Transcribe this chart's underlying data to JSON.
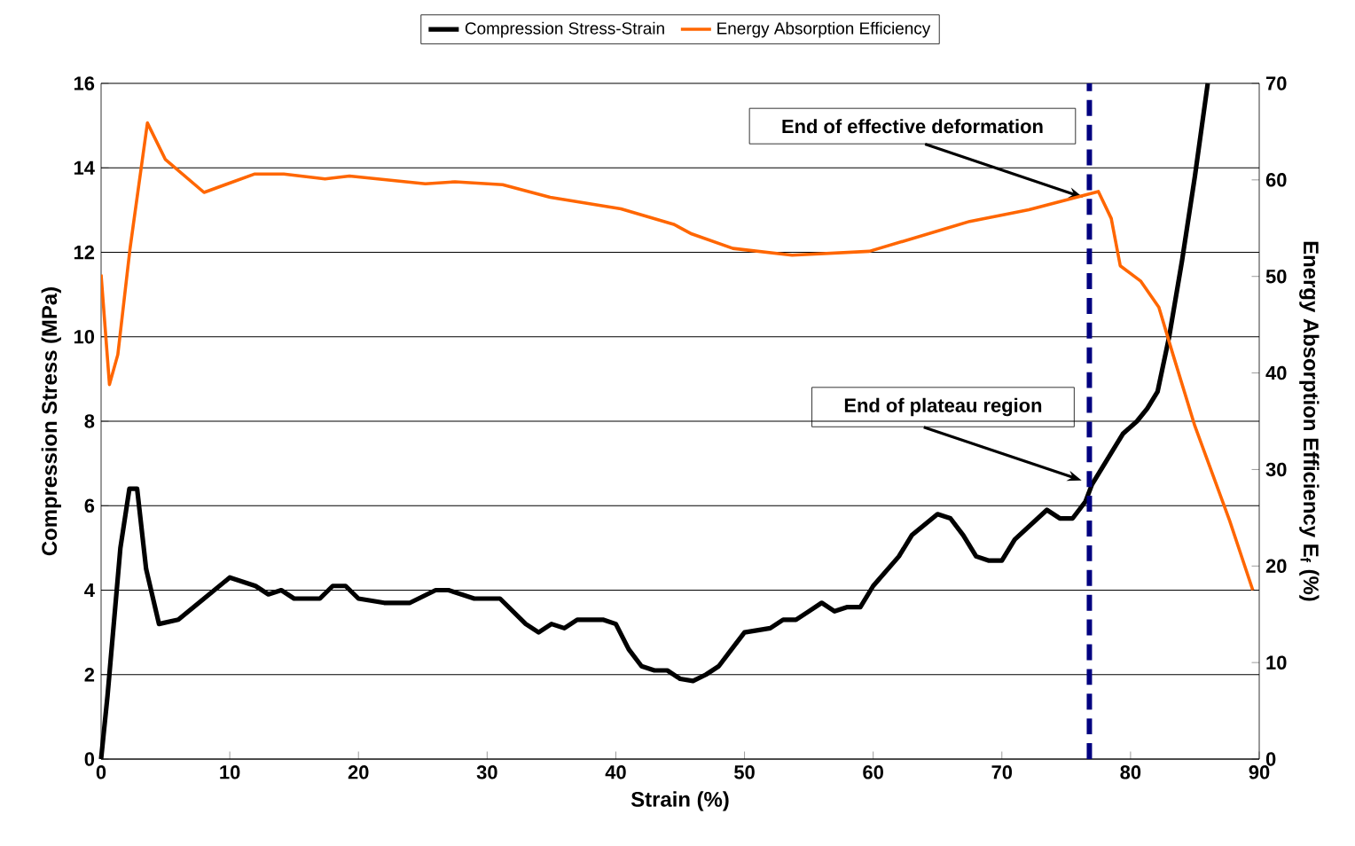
{
  "chart_data": {
    "type": "line",
    "xlabel": "Strain (%)",
    "ylabel": "Compression Stress (MPa)",
    "y2label": "Energy Absorption Efficiency E$_{f}$ (%)",
    "xlim": [
      0,
      90
    ],
    "xticks": [
      0,
      10,
      20,
      30,
      40,
      50,
      60,
      70,
      80,
      90
    ],
    "ylim": [
      0,
      16
    ],
    "yticks": [
      0,
      2,
      4,
      6,
      8,
      10,
      12,
      14,
      16
    ],
    "y2lim": [
      0,
      70
    ],
    "y2ticks": [
      0,
      10,
      20,
      30,
      40,
      50,
      60,
      70
    ],
    "grid": "y",
    "legend": "top",
    "line_style": "solid",
    "series": [
      {
        "name": "Compression Stress-Strain",
        "color": "#000000",
        "x": [
          0,
          0.5,
          1.5,
          2.2,
          2.8,
          3.5,
          4.5,
          6,
          8,
          10,
          12,
          13,
          14,
          15,
          16,
          17,
          18,
          19,
          20,
          22,
          24,
          26,
          27,
          29,
          31,
          33,
          34,
          35,
          36,
          37,
          39,
          40,
          41,
          42,
          43,
          44,
          45,
          46,
          47,
          48,
          49,
          50,
          52,
          53,
          54,
          55,
          56,
          57,
          58,
          59,
          60,
          62,
          63,
          65,
          66,
          67,
          68,
          69,
          70,
          71,
          73.5,
          74.5,
          75.5,
          76.5,
          77,
          78,
          79.4,
          80.5,
          81.3,
          82.1,
          83,
          84,
          85,
          86
        ],
        "values": [
          0,
          1.5,
          5,
          6.4,
          6.4,
          4.5,
          3.2,
          3.3,
          3.8,
          4.3,
          4.1,
          3.9,
          4.0,
          3.8,
          3.8,
          3.8,
          4.1,
          4.1,
          3.8,
          3.7,
          3.7,
          4.0,
          4.0,
          3.8,
          3.8,
          3.2,
          3.0,
          3.2,
          3.1,
          3.3,
          3.3,
          3.2,
          2.6,
          2.2,
          2.1,
          2.1,
          1.9,
          1.85,
          2.0,
          2.2,
          2.6,
          3.0,
          3.1,
          3.3,
          3.3,
          3.5,
          3.7,
          3.5,
          3.6,
          3.6,
          4.1,
          4.8,
          5.3,
          5.8,
          5.7,
          5.3,
          4.8,
          4.7,
          4.7,
          5.2,
          5.9,
          5.7,
          5.7,
          6.1,
          6.5,
          7.0,
          7.7,
          8.0,
          8.3,
          8.7,
          10.0,
          11.8,
          13.8,
          16
        ]
      },
      {
        "name": "Energy Absorption Efficiency",
        "color": "#ff6600",
        "axis": "y2",
        "x": [
          0,
          0.65,
          1.3,
          2.25,
          3.6,
          5,
          8,
          11.9,
          14.2,
          17.4,
          19.3,
          25.2,
          27.5,
          31.2,
          34.9,
          40.4,
          44.5,
          45.9,
          49.1,
          53.7,
          59.7,
          67.5,
          72.1,
          77.5,
          78.5,
          79.2,
          80.8,
          82.2,
          83.3,
          85.0,
          87.7,
          89.5
        ],
        "values": [
          50.2,
          38.8,
          41.9,
          52.9,
          65.9,
          62.1,
          58.7,
          60.6,
          60.6,
          60.1,
          60.4,
          59.6,
          59.8,
          59.5,
          58.2,
          57.0,
          55.4,
          54.4,
          52.9,
          52.2,
          52.6,
          55.7,
          56.9,
          58.8,
          56.0,
          51.1,
          49.5,
          46.8,
          41.9,
          34.5,
          24.7,
          17.5
        ]
      }
    ],
    "ref_lines": [
      {
        "axis": "x",
        "value": 76.8,
        "color": "#000080",
        "line_style": "dashed"
      }
    ],
    "annotations": [
      {
        "text": "End of effective deformation",
        "x": 76.3,
        "y": 13.3
      },
      {
        "text": "End of plateau region",
        "x": 76.2,
        "y": 6.6
      }
    ]
  }
}
